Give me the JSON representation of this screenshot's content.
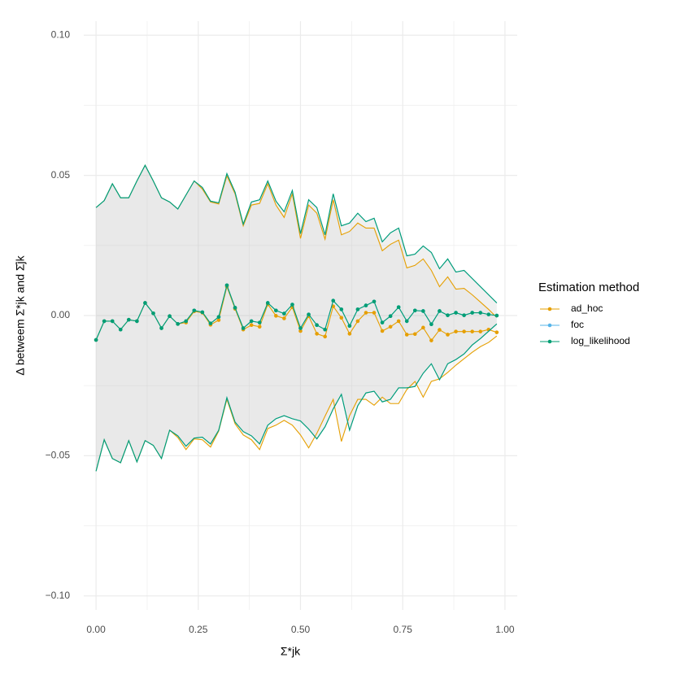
{
  "chart_data": {
    "type": "line",
    "x_label": "Σ*jk",
    "y_label": "Δ betweem Σ*jk and Σ̂jk",
    "legend_title": "Estimation method",
    "legend_position": "right",
    "grid": true,
    "xlim": [
      -0.03,
      1.03
    ],
    "ylim": [
      -0.105,
      0.105
    ],
    "xticks": [
      {
        "value": 0,
        "label": "0.00"
      },
      {
        "value": 0.25,
        "label": "0.25"
      },
      {
        "value": 0.5,
        "label": "0.50"
      },
      {
        "value": 0.75,
        "label": "0.75"
      },
      {
        "value": 1,
        "label": "1.00"
      }
    ],
    "yticks": [
      {
        "value": -0.1,
        "label": "−0.10"
      },
      {
        "value": -0.05,
        "label": "−0.05"
      },
      {
        "value": 0,
        "label": "0.00"
      },
      {
        "value": 0.05,
        "label": "0.05"
      },
      {
        "value": 0.1,
        "label": "0.10"
      }
    ],
    "minor_xticks": [
      0.125,
      0.375,
      0.625,
      0.875
    ],
    "minor_yticks": [
      -0.075,
      -0.025,
      0.025,
      0.075
    ],
    "x": [
      0,
      0.02,
      0.04,
      0.06,
      0.08,
      0.1,
      0.12,
      0.14,
      0.16,
      0.18,
      0.2,
      0.22,
      0.24,
      0.26,
      0.28,
      0.3,
      0.32,
      0.34,
      0.36,
      0.38,
      0.4,
      0.42,
      0.44,
      0.46,
      0.48,
      0.5,
      0.52,
      0.54,
      0.56,
      0.58,
      0.6,
      0.62,
      0.64,
      0.66,
      0.68,
      0.7,
      0.72,
      0.74,
      0.76,
      0.78,
      0.8,
      0.82,
      0.84,
      0.86,
      0.88,
      0.9,
      0.92,
      0.94,
      0.96,
      0.98
    ],
    "series": [
      {
        "name": "ad_hoc",
        "color": "#E69F00",
        "values": [
          -0.0087,
          -0.002,
          -0.002,
          -0.005,
          -0.0015,
          -0.002,
          0.0045,
          0.0008,
          -0.0045,
          -0.0002,
          -0.003,
          -0.0025,
          0.0015,
          0.001,
          -0.0033,
          -0.0016,
          0.0103,
          0.0024,
          -0.005,
          -0.0034,
          -0.004,
          0.004,
          -0.0001,
          -0.001,
          0.003,
          -0.0055,
          -0.0002,
          -0.0065,
          -0.0075,
          0.0033,
          -0.0008,
          -0.0065,
          -0.002,
          0.001,
          0.001,
          -0.0055,
          -0.004,
          -0.002,
          -0.0068,
          -0.0066,
          -0.0043,
          -0.0089,
          -0.0051,
          -0.0068,
          -0.0057,
          -0.0057,
          -0.0057,
          -0.0057,
          -0.005,
          -0.006
        ],
        "upper": [
          0.0385,
          0.041,
          0.047,
          0.042,
          0.042,
          0.048,
          0.0536,
          0.048,
          0.042,
          0.0405,
          0.038,
          0.043,
          0.048,
          0.0451,
          0.0405,
          0.0398,
          0.0498,
          0.0434,
          0.032,
          0.0394,
          0.04,
          0.047,
          0.0394,
          0.035,
          0.0434,
          0.0275,
          0.0394,
          0.0365,
          0.0272,
          0.0413,
          0.0288,
          0.03,
          0.033,
          0.0312,
          0.0312,
          0.0231,
          0.0254,
          0.0269,
          0.017,
          0.0179,
          0.0202,
          0.0161,
          0.0103,
          0.0138,
          0.0094,
          0.0097,
          0.0074,
          0.0048,
          0.0022,
          -0.0007
        ],
        "lower": [
          -0.0555,
          -0.0443,
          -0.051,
          -0.0525,
          -0.0446,
          -0.0522,
          -0.0446,
          -0.0463,
          -0.051,
          -0.0409,
          -0.0435,
          -0.0478,
          -0.044,
          -0.0443,
          -0.0469,
          -0.0412,
          -0.0299,
          -0.0386,
          -0.0426,
          -0.0443,
          -0.0478,
          -0.0403,
          -0.0391,
          -0.0374,
          -0.0391,
          -0.0426,
          -0.0472,
          -0.042,
          -0.0359,
          -0.0299,
          -0.0449,
          -0.0357,
          -0.0299,
          -0.0299,
          -0.032,
          -0.0291,
          -0.0314,
          -0.0314,
          -0.0264,
          -0.0235,
          -0.0291,
          -0.0235,
          -0.0226,
          -0.0203,
          -0.0177,
          -0.0154,
          -0.0131,
          -0.0111,
          -0.0096,
          -0.0073
        ]
      },
      {
        "name": "foc",
        "color": "#56B4E9",
        "values": [
          -0.0087,
          -0.002,
          -0.002,
          -0.005,
          -0.0015,
          -0.002,
          0.0045,
          0.0008,
          -0.0045,
          -0.0002,
          -0.003,
          -0.002,
          0.0018,
          0.0012,
          -0.0028,
          -0.0005,
          0.0108,
          0.0028,
          -0.0045,
          -0.002,
          -0.0025,
          0.0045,
          0.0018,
          0.0007,
          0.0039,
          -0.0045,
          0.0004,
          -0.0034,
          -0.005,
          0.0053,
          0.0022,
          -0.0037,
          0.0022,
          0.0036,
          0.005,
          -0.0025,
          -0.0002,
          0.003,
          -0.002,
          0.0018,
          0.0016,
          -0.0031,
          0.0016,
          0.0001,
          0.001,
          0.0001,
          0.001,
          0.001,
          0.0004,
          0
        ],
        "upper": [
          0.0385,
          0.041,
          0.047,
          0.042,
          0.042,
          0.048,
          0.0536,
          0.048,
          0.042,
          0.0405,
          0.038,
          0.043,
          0.048,
          0.0457,
          0.0408,
          0.0402,
          0.0506,
          0.044,
          0.0326,
          0.0405,
          0.0413,
          0.048,
          0.0408,
          0.037,
          0.0446,
          0.0292,
          0.0413,
          0.0385,
          0.0288,
          0.0434,
          0.032,
          0.033,
          0.0365,
          0.0335,
          0.0347,
          0.0263,
          0.0295,
          0.0312,
          0.0213,
          0.0219,
          0.0248,
          0.0225,
          0.0167,
          0.0202,
          0.0155,
          0.0161,
          0.0132,
          0.0103,
          0.0074,
          0.0045
        ],
        "lower": [
          -0.0555,
          -0.0443,
          -0.051,
          -0.0525,
          -0.0446,
          -0.0522,
          -0.0446,
          -0.0463,
          -0.051,
          -0.0409,
          -0.0429,
          -0.0466,
          -0.0437,
          -0.0434,
          -0.0458,
          -0.0409,
          -0.0293,
          -0.038,
          -0.0414,
          -0.0429,
          -0.0458,
          -0.0391,
          -0.0368,
          -0.0357,
          -0.0368,
          -0.0376,
          -0.0405,
          -0.044,
          -0.0397,
          -0.0333,
          -0.0281,
          -0.0409,
          -0.0322,
          -0.0276,
          -0.027,
          -0.0308,
          -0.0299,
          -0.0258,
          -0.0258,
          -0.0253,
          -0.0206,
          -0.0172,
          -0.0229,
          -0.0172,
          -0.0157,
          -0.0137,
          -0.0105,
          -0.0082,
          -0.0056,
          -0.003
        ]
      },
      {
        "name": "log_likelihood",
        "color": "#009E73",
        "values": [
          -0.0087,
          -0.002,
          -0.002,
          -0.005,
          -0.0015,
          -0.002,
          0.0045,
          0.0008,
          -0.0045,
          -0.0002,
          -0.003,
          -0.002,
          0.0018,
          0.0012,
          -0.0028,
          -0.0005,
          0.0108,
          0.0028,
          -0.0045,
          -0.002,
          -0.0025,
          0.0045,
          0.0018,
          0.0007,
          0.0039,
          -0.0045,
          0.0004,
          -0.0034,
          -0.005,
          0.0053,
          0.0022,
          -0.0037,
          0.0022,
          0.0036,
          0.005,
          -0.0025,
          -0.0002,
          0.003,
          -0.002,
          0.0018,
          0.0016,
          -0.0031,
          0.0016,
          0.0001,
          0.001,
          0.0001,
          0.001,
          0.001,
          0.0004,
          0
        ],
        "upper": [
          0.0385,
          0.041,
          0.047,
          0.042,
          0.042,
          0.048,
          0.0536,
          0.048,
          0.042,
          0.0405,
          0.038,
          0.043,
          0.048,
          0.0457,
          0.0408,
          0.0402,
          0.0506,
          0.044,
          0.0326,
          0.0405,
          0.0413,
          0.048,
          0.0408,
          0.037,
          0.0446,
          0.0292,
          0.0413,
          0.0385,
          0.0288,
          0.0434,
          0.032,
          0.033,
          0.0365,
          0.0335,
          0.0347,
          0.0263,
          0.0295,
          0.0312,
          0.0213,
          0.0219,
          0.0248,
          0.0225,
          0.0167,
          0.0202,
          0.0155,
          0.0161,
          0.0132,
          0.0103,
          0.0074,
          0.0045
        ],
        "lower": [
          -0.0555,
          -0.0443,
          -0.051,
          -0.0525,
          -0.0446,
          -0.0522,
          -0.0446,
          -0.0463,
          -0.051,
          -0.0409,
          -0.0429,
          -0.0466,
          -0.0437,
          -0.0434,
          -0.0458,
          -0.0409,
          -0.0293,
          -0.038,
          -0.0414,
          -0.0429,
          -0.0458,
          -0.0391,
          -0.0368,
          -0.0357,
          -0.0368,
          -0.0376,
          -0.0405,
          -0.044,
          -0.0397,
          -0.0333,
          -0.0281,
          -0.0409,
          -0.0322,
          -0.0276,
          -0.027,
          -0.0308,
          -0.0299,
          -0.0258,
          -0.0258,
          -0.0253,
          -0.0206,
          -0.0172,
          -0.0229,
          -0.0172,
          -0.0157,
          -0.0137,
          -0.0105,
          -0.0082,
          -0.0056,
          -0.003
        ]
      }
    ]
  }
}
